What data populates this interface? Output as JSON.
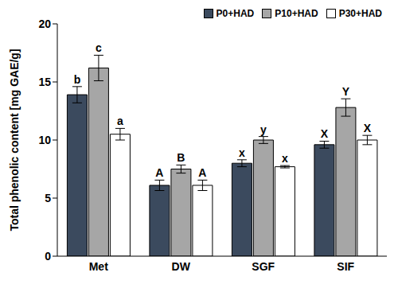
{
  "chart_data": {
    "type": "bar",
    "y_label": "Total phenolic content [mg GAE/g]",
    "categories": [
      "Met",
      "DW",
      "SGF",
      "SIF"
    ],
    "series": [
      {
        "name": "P0+HAD",
        "color": "#3b4a5e",
        "values": [
          13.9,
          6.1,
          8.0,
          9.6
        ],
        "errors": [
          0.7,
          0.45,
          0.3,
          0.3
        ],
        "annotations": [
          "b",
          "A",
          "x",
          "X"
        ]
      },
      {
        "name": "P10+HAD",
        "color": "#a6a6a6",
        "values": [
          16.2,
          7.5,
          10.0,
          12.8
        ],
        "errors": [
          1.1,
          0.35,
          0.3,
          0.75
        ],
        "annotations": [
          "c",
          "B",
          "y",
          "Y"
        ]
      },
      {
        "name": "P30+HAD",
        "color": "#ffffff",
        "values": [
          10.5,
          6.1,
          7.7,
          10.0
        ],
        "errors": [
          0.5,
          0.45,
          0.1,
          0.4
        ],
        "annotations": [
          "a",
          "A",
          "x",
          "X"
        ]
      }
    ],
    "ylim": [
      0,
      20
    ],
    "yticks": [
      0,
      5,
      10,
      15,
      20
    ],
    "grid": false,
    "legend": "upper right"
  }
}
